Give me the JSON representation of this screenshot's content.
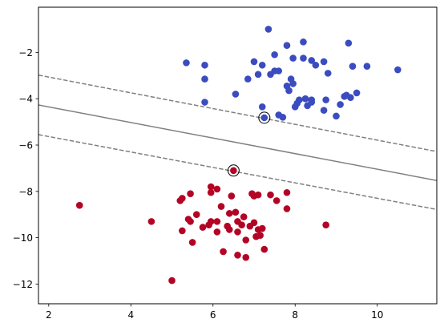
{
  "chart_data": {
    "type": "scatter",
    "title": "",
    "xlabel": "",
    "ylabel": "",
    "xlim": [
      1.75,
      11.45
    ],
    "ylim": [
      -12.85,
      -0.05
    ],
    "x_ticks": [
      2,
      4,
      6,
      8,
      10
    ],
    "y_ticks": [
      -2,
      -4,
      -6,
      -8,
      -10,
      -12
    ],
    "grid": false,
    "series": [
      {
        "color": "#3b4cc0",
        "points": [
          [
            7.35,
            -1.0
          ],
          [
            9.3,
            -1.6
          ],
          [
            8.2,
            -1.55
          ],
          [
            7.8,
            -1.7
          ],
          [
            7.5,
            -2.1
          ],
          [
            7.2,
            -2.55
          ],
          [
            7.0,
            -2.4
          ],
          [
            7.95,
            -2.25
          ],
          [
            8.2,
            -2.25
          ],
          [
            8.4,
            -2.35
          ],
          [
            8.5,
            -2.55
          ],
          [
            8.7,
            -2.4
          ],
          [
            9.4,
            -2.6
          ],
          [
            9.75,
            -2.6
          ],
          [
            10.5,
            -2.75
          ],
          [
            5.35,
            -2.45
          ],
          [
            5.8,
            -2.55
          ],
          [
            5.8,
            -3.15
          ],
          [
            6.85,
            -3.15
          ],
          [
            7.1,
            -2.95
          ],
          [
            7.4,
            -2.95
          ],
          [
            7.5,
            -2.8
          ],
          [
            7.6,
            -2.8
          ],
          [
            7.8,
            -3.45
          ],
          [
            7.9,
            -3.15
          ],
          [
            7.95,
            -3.35
          ],
          [
            7.85,
            -3.65
          ],
          [
            8.8,
            -2.9
          ],
          [
            6.55,
            -3.8
          ],
          [
            8.1,
            -4.05
          ],
          [
            8.25,
            -4.0
          ],
          [
            8.4,
            -4.05
          ],
          [
            8.3,
            -4.3
          ],
          [
            8.05,
            -4.2
          ],
          [
            8.0,
            -4.35
          ],
          [
            8.4,
            -4.15
          ],
          [
            8.75,
            -4.05
          ],
          [
            9.2,
            -3.9
          ],
          [
            9.25,
            -3.85
          ],
          [
            9.35,
            -3.95
          ],
          [
            9.5,
            -3.75
          ],
          [
            9.1,
            -4.25
          ],
          [
            9.0,
            -4.75
          ],
          [
            8.7,
            -4.5
          ],
          [
            7.2,
            -4.35
          ],
          [
            7.6,
            -4.7
          ],
          [
            7.7,
            -4.8
          ],
          [
            5.8,
            -4.15
          ],
          [
            7.25,
            -4.82
          ]
        ]
      },
      {
        "color": "#b40426",
        "points": [
          [
            6.5,
            -7.1
          ],
          [
            2.75,
            -8.6
          ],
          [
            4.5,
            -9.3
          ],
          [
            5.0,
            -11.85
          ],
          [
            5.25,
            -8.3
          ],
          [
            5.2,
            -8.4
          ],
          [
            5.45,
            -8.1
          ],
          [
            5.45,
            -9.3
          ],
          [
            5.4,
            -9.2
          ],
          [
            5.25,
            -9.7
          ],
          [
            5.5,
            -10.2
          ],
          [
            5.6,
            -9.0
          ],
          [
            5.75,
            -9.55
          ],
          [
            5.9,
            -9.45
          ],
          [
            5.95,
            -9.3
          ],
          [
            5.95,
            -8.05
          ],
          [
            5.95,
            -7.8
          ],
          [
            6.1,
            -7.9
          ],
          [
            6.1,
            -9.3
          ],
          [
            6.1,
            -9.75
          ],
          [
            6.2,
            -8.65
          ],
          [
            6.25,
            -10.6
          ],
          [
            6.35,
            -9.5
          ],
          [
            6.4,
            -9.65
          ],
          [
            6.4,
            -8.95
          ],
          [
            6.45,
            -8.2
          ],
          [
            6.55,
            -8.9
          ],
          [
            6.6,
            -9.3
          ],
          [
            6.6,
            -9.75
          ],
          [
            6.6,
            -10.75
          ],
          [
            6.7,
            -9.45
          ],
          [
            6.75,
            -9.1
          ],
          [
            6.8,
            -10.1
          ],
          [
            6.8,
            -10.85
          ],
          [
            6.9,
            -9.5
          ],
          [
            6.95,
            -8.1
          ],
          [
            7.0,
            -8.2
          ],
          [
            7.0,
            -9.35
          ],
          [
            7.05,
            -9.95
          ],
          [
            7.1,
            -8.15
          ],
          [
            7.1,
            -9.65
          ],
          [
            7.15,
            -9.9
          ],
          [
            7.2,
            -9.6
          ],
          [
            7.25,
            -10.5
          ],
          [
            7.4,
            -8.15
          ],
          [
            7.55,
            -8.4
          ],
          [
            7.8,
            -8.05
          ],
          [
            7.8,
            -8.75
          ],
          [
            8.75,
            -9.45
          ]
        ]
      }
    ],
    "support_vectors": [
      [
        7.25,
        -4.82
      ],
      [
        6.5,
        -7.1
      ]
    ],
    "lines": [
      {
        "style": "solid",
        "color": "#808080",
        "from": [
          1.75,
          -4.27
        ],
        "to": [
          11.45,
          -7.53
        ]
      },
      {
        "style": "dashed",
        "color": "#808080",
        "from": [
          1.75,
          -2.98
        ],
        "to": [
          11.45,
          -6.28
        ]
      },
      {
        "style": "dashed",
        "color": "#808080",
        "from": [
          1.75,
          -5.55
        ],
        "to": [
          11.45,
          -8.78
        ]
      }
    ]
  }
}
